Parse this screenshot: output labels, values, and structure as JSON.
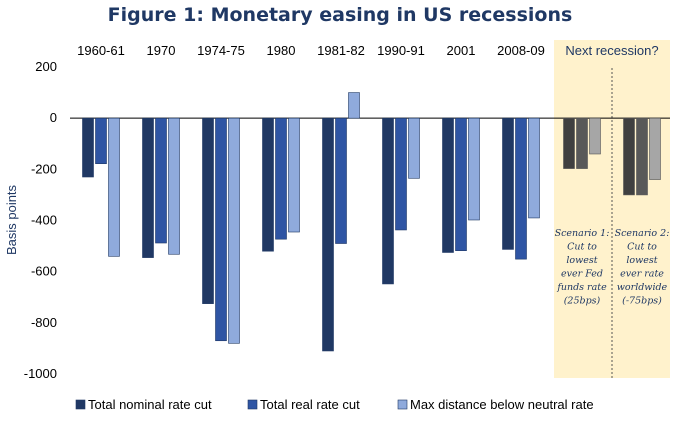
{
  "chart_data": {
    "type": "bar",
    "title": "Figure 1: Monetary easing in US recessions",
    "ylabel": "Basis points",
    "xlabel": "",
    "ylim": [
      -1000,
      200
    ],
    "yticks": [
      200,
      0,
      -200,
      -400,
      -600,
      -800,
      -1000
    ],
    "categories": [
      "1960-61",
      "1970",
      "1974-75",
      "1980",
      "1981-82",
      "1990-91",
      "2001",
      "2008-09"
    ],
    "series": [
      {
        "name": "Total nominal rate cut",
        "color": "#203864",
        "values": [
          -230,
          -545,
          -725,
          -520,
          -910,
          -648,
          -525,
          -513
        ]
      },
      {
        "name": "Total real rate cut",
        "color": "#2f55a4",
        "values": [
          -178,
          -488,
          -870,
          -473,
          -490,
          -437,
          -518,
          -551
        ]
      },
      {
        "name": "Max distance below neutral rate",
        "color": "#8faadc",
        "values": [
          -540,
          -532,
          -880,
          -445,
          100,
          -235,
          -398,
          -390
        ]
      }
    ],
    "highlight": {
      "label": "Next recession?",
      "band_color": "#fff2cc",
      "scenarios": [
        {
          "lines": [
            "Scenario 1:",
            "Cut to",
            "lowest",
            "ever Fed",
            "funds rate",
            "(25bps)"
          ],
          "values": [
            -197,
            -197,
            -140
          ],
          "colors": [
            "#404040",
            "#595959",
            "#a6a6a6"
          ]
        },
        {
          "lines": [
            "Scenario 2:",
            "Cut to",
            "lowest",
            "ever rate",
            "worldwide",
            "(-75bps)"
          ],
          "values": [
            -300,
            -300,
            -240
          ],
          "colors": [
            "#404040",
            "#595959",
            "#a6a6a6"
          ]
        }
      ]
    },
    "legend_position": "bottom"
  }
}
